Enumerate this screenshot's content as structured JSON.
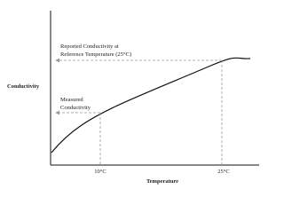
{
  "diagram": {
    "y_axis_label": "Conductivity",
    "x_axis_label": "Temperature",
    "x_ticks": [
      "10°C",
      "25°C"
    ],
    "annotations": [
      {
        "lines": [
          "Reported Conductivity at",
          "Reference Temperature (25°C)"
        ]
      },
      {
        "lines": [
          "Measured",
          "Conductivity"
        ]
      }
    ]
  }
}
